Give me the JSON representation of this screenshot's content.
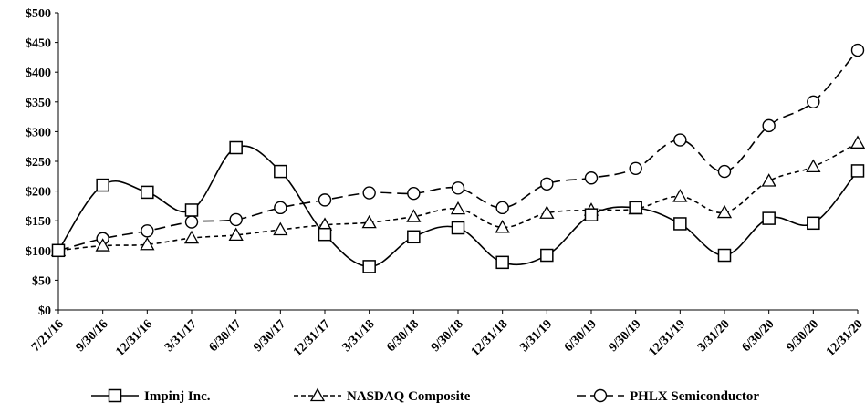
{
  "chart_data": {
    "type": "line",
    "categories": [
      "7/21/16",
      "9/30/16",
      "12/31/16",
      "3/31/17",
      "6/30/17",
      "9/30/17",
      "12/31/17",
      "3/31/18",
      "6/30/18",
      "9/30/18",
      "12/31/18",
      "3/31/19",
      "6/30/19",
      "9/30/19",
      "12/31/19",
      "3/31/20",
      "6/30/20",
      "9/30/20",
      "12/31/20"
    ],
    "y_ticks": [
      "$0",
      "$50",
      "$100",
      "$150",
      "$200",
      "$250",
      "$300",
      "$350",
      "$400",
      "$450",
      "$500"
    ],
    "ylim": [
      0,
      500
    ],
    "grid": false,
    "legend_position": "bottom",
    "series": [
      {
        "name": "Impinj Inc.",
        "marker": "square",
        "line": "solid",
        "values": [
          100,
          210,
          198,
          168,
          273,
          233,
          127,
          73,
          123,
          138,
          80,
          92,
          160,
          172,
          145,
          92,
          154,
          146,
          234
        ]
      },
      {
        "name": "NASDAQ Composite",
        "marker": "triangle",
        "line": "dashed",
        "values": [
          100,
          108,
          110,
          121,
          126,
          135,
          143,
          147,
          157,
          170,
          139,
          163,
          168,
          170,
          191,
          164,
          217,
          241,
          281
        ]
      },
      {
        "name": "PHLX Semiconductor",
        "marker": "circle",
        "line": "longdash",
        "values": [
          100,
          120,
          133,
          148,
          152,
          172,
          185,
          197,
          196,
          205,
          172,
          212,
          222,
          238,
          286,
          233,
          310,
          350,
          437
        ]
      }
    ]
  }
}
